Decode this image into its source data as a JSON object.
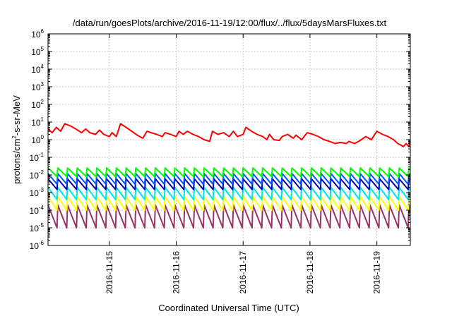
{
  "chart_data": {
    "type": "line",
    "title": "/data/run/goesPlots/archive/2016-11-19/12:00/flux/../flux/5daysMarsFluxes.txt",
    "xlabel": "Coordinated Universal Time (UTC)",
    "ylabel": {
      "pre": "protons/cm",
      "sup": "2",
      "post": "-s-sr-MeV"
    },
    "yscale": "log",
    "ylim": [
      1e-06,
      1000000.0
    ],
    "xlim": [
      "2016-11-14T02:00",
      "2016-11-19T12:00"
    ],
    "grid": true,
    "x_tick_labels": [
      "2016-11-15",
      "2016-11-16",
      "2016-11-17",
      "2016-11-18",
      "2016-11-19"
    ],
    "x_ticks": [
      "2016-11-15T00:00",
      "2016-11-16T00:00",
      "2016-11-17T00:00",
      "2016-11-18T00:00",
      "2016-11-19T00:00"
    ],
    "y_ticks": [
      {
        "base": "10",
        "exp": "-6"
      },
      {
        "base": "10",
        "exp": "-5"
      },
      {
        "base": "10",
        "exp": "-4"
      },
      {
        "base": "10",
        "exp": "-3"
      },
      {
        "base": "10",
        "exp": "-2"
      },
      {
        "base": "10",
        "exp": "-1"
      },
      {
        "base": "10",
        "exp": "0"
      },
      {
        "base": "10",
        "exp": "1"
      },
      {
        "base": "10",
        "exp": "2"
      },
      {
        "base": "10",
        "exp": "3"
      },
      {
        "base": "10",
        "exp": "4"
      },
      {
        "base": "10",
        "exp": "5"
      },
      {
        "base": "10",
        "exp": "6"
      }
    ],
    "series": [
      {
        "color": "#ff0000",
        "points": [
          [
            "2016-11-14T02:00",
            4.0
          ],
          [
            "2016-11-14T03:30",
            2.5
          ],
          [
            "2016-11-14T05:00",
            5.0
          ],
          [
            "2016-11-14T06:30",
            3.0
          ],
          [
            "2016-11-14T08:00",
            8.0
          ],
          [
            "2016-11-14T10:00",
            6.0
          ],
          [
            "2016-11-14T12:00",
            4.0
          ],
          [
            "2016-11-14T14:00",
            2.5
          ],
          [
            "2016-11-14T15:30",
            4.0
          ],
          [
            "2016-11-14T17:00",
            2.5
          ],
          [
            "2016-11-14T19:00",
            2.0
          ],
          [
            "2016-11-14T20:30",
            3.5
          ],
          [
            "2016-11-14T22:00",
            2.0
          ],
          [
            "2016-11-15T00:00",
            1.5
          ],
          [
            "2016-11-15T01:00",
            2.5
          ],
          [
            "2016-11-15T02:30",
            1.5
          ],
          [
            "2016-11-15T04:00",
            8.0
          ],
          [
            "2016-11-15T06:00",
            5.0
          ],
          [
            "2016-11-15T08:00",
            3.0
          ],
          [
            "2016-11-15T10:00",
            1.8
          ],
          [
            "2016-11-15T12:00",
            1.2
          ],
          [
            "2016-11-15T13:30",
            3.0
          ],
          [
            "2016-11-15T15:00",
            2.5
          ],
          [
            "2016-11-15T17:00",
            2.0
          ],
          [
            "2016-11-15T19:00",
            1.5
          ],
          [
            "2016-11-15T20:00",
            2.5
          ],
          [
            "2016-11-15T22:00",
            2.0
          ],
          [
            "2016-11-16T00:00",
            1.5
          ],
          [
            "2016-11-16T01:00",
            3.0
          ],
          [
            "2016-11-16T02:30",
            2.0
          ],
          [
            "2016-11-16T04:00",
            3.0
          ],
          [
            "2016-11-16T06:00",
            2.0
          ],
          [
            "2016-11-16T08:00",
            1.5
          ],
          [
            "2016-11-16T10:00",
            1.0
          ],
          [
            "2016-11-16T12:00",
            0.8
          ],
          [
            "2016-11-16T13:00",
            3.0
          ],
          [
            "2016-11-16T15:00",
            2.0
          ],
          [
            "2016-11-16T17:00",
            2.5
          ],
          [
            "2016-11-16T19:00",
            1.5
          ],
          [
            "2016-11-16T20:30",
            3.0
          ],
          [
            "2016-11-16T22:00",
            1.5
          ],
          [
            "2016-11-17T00:00",
            2.0
          ],
          [
            "2016-11-17T01:00",
            5.0
          ],
          [
            "2016-11-17T03:00",
            3.0
          ],
          [
            "2016-11-17T05:00",
            2.0
          ],
          [
            "2016-11-17T07:00",
            1.5
          ],
          [
            "2016-11-17T08:30",
            1.0
          ],
          [
            "2016-11-17T09:30",
            2.0
          ],
          [
            "2016-11-17T11:00",
            1.0
          ],
          [
            "2016-11-17T13:00",
            0.9
          ],
          [
            "2016-11-17T14:00",
            1.5
          ],
          [
            "2016-11-17T16:00",
            2.0
          ],
          [
            "2016-11-17T18:00",
            1.2
          ],
          [
            "2016-11-17T19:00",
            1.8
          ],
          [
            "2016-11-17T21:00",
            1.0
          ],
          [
            "2016-11-17T23:00",
            2.5
          ],
          [
            "2016-11-18T01:00",
            2.0
          ],
          [
            "2016-11-18T03:00",
            1.5
          ],
          [
            "2016-11-18T05:00",
            1.0
          ],
          [
            "2016-11-18T07:00",
            0.8
          ],
          [
            "2016-11-18T09:00",
            0.6
          ],
          [
            "2016-11-18T11:00",
            0.7
          ],
          [
            "2016-11-18T13:00",
            0.6
          ],
          [
            "2016-11-18T14:00",
            0.8
          ],
          [
            "2016-11-18T16:00",
            0.6
          ],
          [
            "2016-11-18T18:00",
            0.9
          ],
          [
            "2016-11-18T20:00",
            1.5
          ],
          [
            "2016-11-18T22:00",
            1.0
          ],
          [
            "2016-11-19T00:00",
            3.0
          ],
          [
            "2016-11-19T02:00",
            2.0
          ],
          [
            "2016-11-19T04:00",
            1.5
          ],
          [
            "2016-11-19T06:00",
            1.0
          ],
          [
            "2016-11-19T07:30",
            0.6
          ],
          [
            "2016-11-19T08:30",
            0.5
          ],
          [
            "2016-11-19T09:30",
            0.4
          ],
          [
            "2016-11-19T10:30",
            0.6
          ],
          [
            "2016-11-19T11:30",
            0.4
          ],
          [
            "2016-11-19T12:00",
            1.0
          ]
        ]
      },
      {
        "color": "#00ff00",
        "sawtooth": {
          "start": "2016-11-14T02:00",
          "period_hours": 3.5,
          "peak": 0.025,
          "trough": 0.008
        }
      },
      {
        "color": "#0055ff",
        "sawtooth": {
          "start": "2016-11-14T02:00",
          "period_hours": 3.5,
          "peak": 0.012,
          "trough": 0.003
        }
      },
      {
        "color": "#0000aa",
        "sawtooth": {
          "start": "2016-11-14T02:00",
          "period_hours": 3.5,
          "peak": 0.006,
          "trough": 0.0015
        }
      },
      {
        "color": "#00e5e5",
        "sawtooth": {
          "start": "2016-11-14T02:00",
          "period_hours": 3.5,
          "peak": 0.002,
          "trough": 0.0004
        }
      },
      {
        "color": "#ffff00",
        "sawtooth": {
          "start": "2016-11-14T02:00",
          "period_hours": 3.5,
          "peak": 0.0006,
          "trough": 0.0001
        }
      },
      {
        "color": "#993366",
        "sawtooth": {
          "start": "2016-11-14T02:00",
          "period_hours": 3.5,
          "peak": 0.0002,
          "trough": 1e-05
        }
      }
    ]
  }
}
